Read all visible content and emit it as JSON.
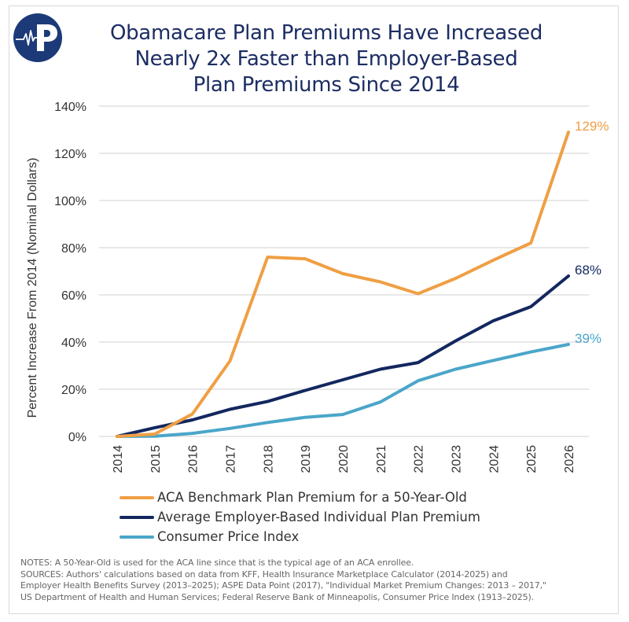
{
  "header": {
    "logo_icon": "heartbeat-p-logo-icon",
    "title_lines": [
      "Obamacare Plan Premiums Have Increased",
      "Nearly 2x Faster than Employer-Based",
      "Plan Premiums Since 2014"
    ]
  },
  "colors": {
    "title": "#1c2d63",
    "aca": "#ef9f44",
    "employer": "#13275f",
    "cpi": "#4aa6c9",
    "grid": "#d9d9d9",
    "logo_bg": "#1c3a78"
  },
  "chart_data": {
    "type": "line",
    "title": "Obamacare Plan Premiums Have Increased Nearly 2x Faster than Employer-Based Plan Premiums Since 2014",
    "xlabel": "",
    "ylabel": "Percent Increase From 2014 (Nominal Dollars)",
    "ylim": [
      0,
      140
    ],
    "yticks": [
      0,
      20,
      40,
      60,
      80,
      100,
      120,
      140
    ],
    "ytick_labels": [
      "0%",
      "20%",
      "40%",
      "60%",
      "80%",
      "100%",
      "120%",
      "140%"
    ],
    "x": [
      "2014",
      "2015",
      "2016",
      "2017",
      "2018",
      "2019",
      "2020",
      "2021",
      "2022",
      "2023",
      "2024",
      "2025",
      "2026"
    ],
    "grid": true,
    "legend_position": "bottom",
    "series": [
      {
        "key": "aca",
        "name": "ACA Benchmark Plan Premium for a 50-Year-Old",
        "values": [
          0,
          1,
          9.5,
          32,
          76,
          75.3,
          69,
          65.5,
          60.5,
          67,
          74.7,
          82,
          129
        ],
        "end_label": "129%"
      },
      {
        "key": "employer",
        "name": "Average Employer-Based Individual Plan Premium",
        "values": [
          0,
          3.7,
          7,
          11.5,
          14.8,
          19.5,
          24,
          28.5,
          31.3,
          40.5,
          49,
          55,
          68
        ],
        "end_label": "68%"
      },
      {
        "key": "cpi",
        "name": "Consumer Price Index",
        "values": [
          0,
          0.1,
          1.3,
          3.4,
          5.9,
          8.1,
          9.3,
          14.6,
          23.6,
          28.5,
          32.2,
          35.8,
          39
        ],
        "end_label": "39%"
      }
    ]
  },
  "legend": {
    "items": [
      {
        "label": "ACA Benchmark Plan Premium for a 50-Year-Old"
      },
      {
        "label": "Average Employer-Based Individual Plan Premium"
      },
      {
        "label": "Consumer Price Index"
      }
    ]
  },
  "notes": {
    "lines": [
      "NOTES: A 50-Year-Old is used for the ACA line since that is the typical age of an ACA enrollee.",
      "SOURCES: Authors' calculations based on data from KFF, Health Insurance Marketplace Calculator (2014-2025) and",
      "Employer Health Benefits Survey (2013–2025); ASPE Data Point (2017), \"Individual Market Premium Changes: 2013 – 2017,\"",
      "US Department of Health and Human Services; Federal Reserve Bank of Minneapolis, Consumer Price Index (1913–2025)."
    ]
  }
}
